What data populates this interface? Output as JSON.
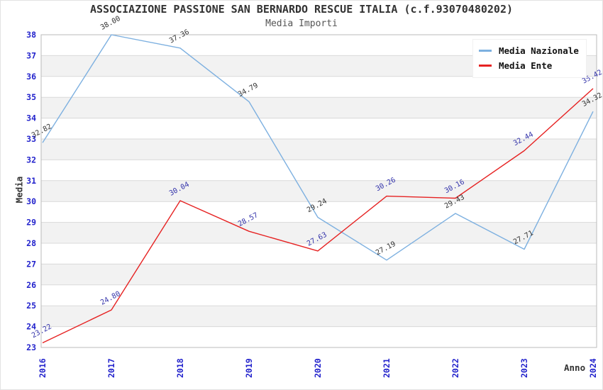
{
  "header": {
    "title": "ASSOCIAZIONE PASSIONE SAN BERNARDO RESCUE ITALIA (c.f.93070480202)",
    "subtitle": "Media Importi"
  },
  "chart_data": {
    "type": "line",
    "x": [
      "2016",
      "2017",
      "2018",
      "2019",
      "2020",
      "2021",
      "2022",
      "2023",
      "2024"
    ],
    "xlabel": "Anno",
    "ylabel": "Media",
    "ylim": [
      23,
      38
    ],
    "ytick_step": 1,
    "grid": "horizontal gridlines at every integer, alternating light-gray bands",
    "legend_position": "top-right",
    "series": [
      {
        "name": "Media Nazionale",
        "color": "#7db0e0",
        "label_color": "#333333",
        "values": [
          32.82,
          38.0,
          37.36,
          34.79,
          29.24,
          27.19,
          29.43,
          27.71,
          34.32
        ]
      },
      {
        "name": "Media Ente",
        "color": "#e62222",
        "label_color": "#3333aa",
        "values": [
          23.22,
          24.8,
          30.04,
          28.57,
          27.63,
          30.26,
          30.16,
          32.44,
          35.42
        ]
      }
    ],
    "style": {
      "tick_label_color": "#2222cc",
      "band_color": "#f2f2f2",
      "grid_color": "#d9d9d9",
      "border_color": "#bbbbbb",
      "label_rotation_deg": -28
    }
  }
}
